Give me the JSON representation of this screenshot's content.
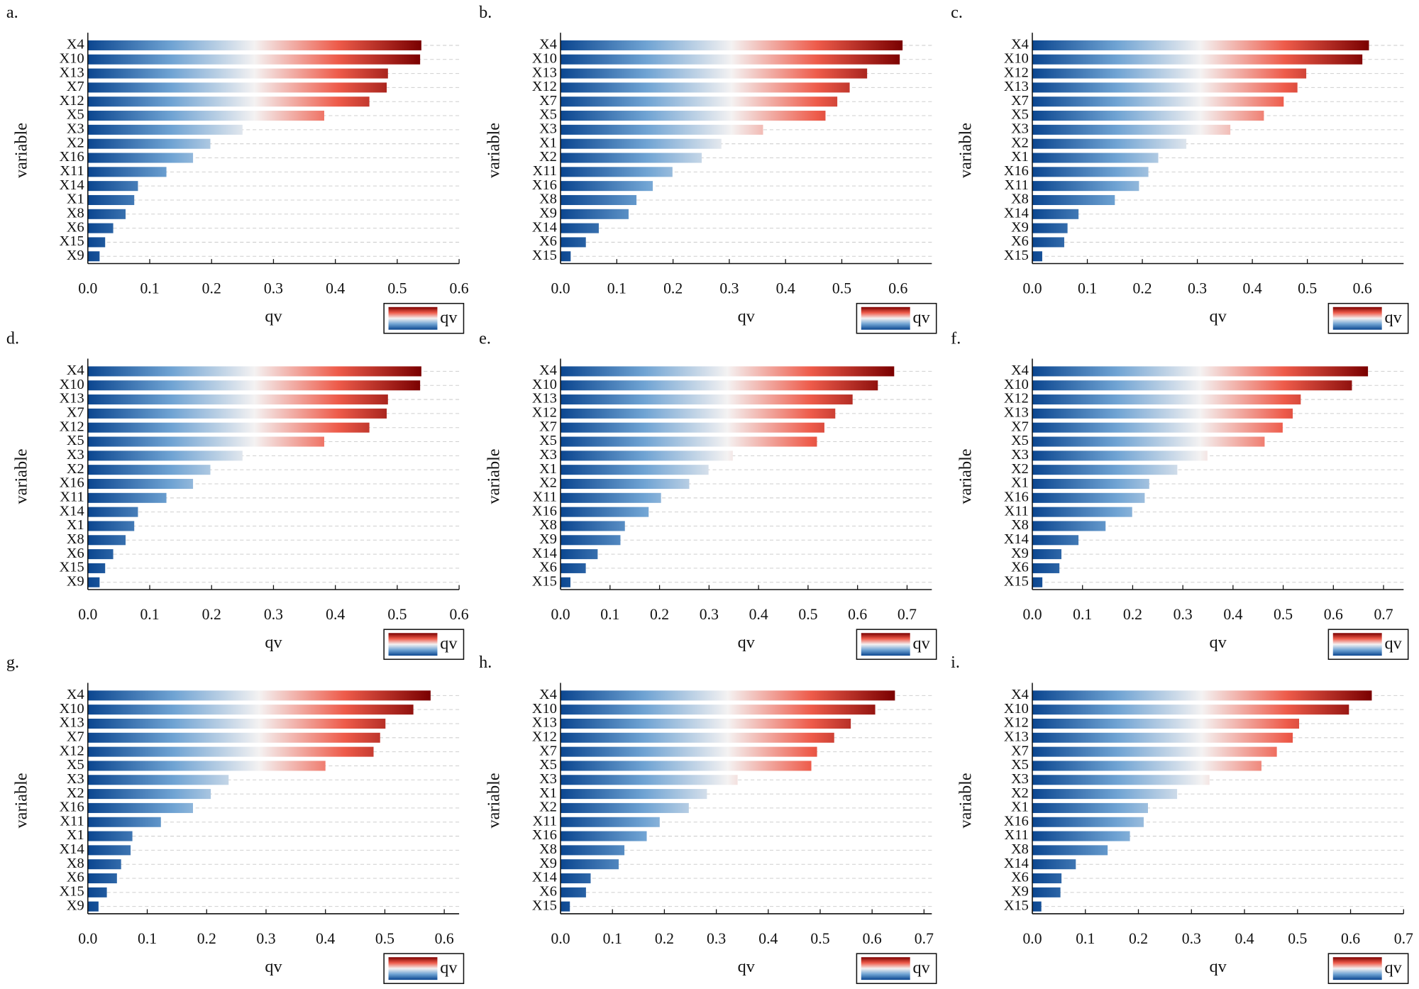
{
  "chart_data": [
    {
      "type": "bar",
      "title": "a.",
      "ylabel": "variable",
      "xlabel": "qv",
      "legend_label": "qv",
      "grid": true,
      "colormap": [
        "#0b4690",
        "#6fa3d3",
        "#f4f2f2",
        "#ee5b4a",
        "#7a0000"
      ],
      "categories": [
        "X4",
        "X10",
        "X13",
        "X7",
        "X12",
        "X5",
        "X3",
        "X2",
        "X16",
        "X11",
        "X14",
        "X1",
        "X8",
        "X6",
        "X15",
        "X9"
      ],
      "values": [
        0.539,
        0.537,
        0.485,
        0.483,
        0.455,
        0.382,
        0.25,
        0.198,
        0.17,
        0.127,
        0.081,
        0.075,
        0.061,
        0.041,
        0.028,
        0.019
      ],
      "xlim": [
        0,
        0.6
      ],
      "xticks": [
        {
          "value": 0,
          "label": "0.0"
        },
        0.1,
        0.2,
        0.3,
        0.4,
        0.5,
        0.6
      ]
    },
    {
      "type": "bar",
      "title": "b.",
      "ylabel": "variable",
      "xlabel": "qv",
      "legend_label": "qv",
      "grid": true,
      "colormap": [
        "#0b4690",
        "#6fa3d3",
        "#f4f2f2",
        "#ee5b4a",
        "#7a0000"
      ],
      "categories": [
        "X4",
        "X10",
        "X13",
        "X12",
        "X7",
        "X5",
        "X3",
        "X1",
        "X2",
        "X11",
        "X16",
        "X8",
        "X9",
        "X14",
        "X6",
        "X15"
      ],
      "values": [
        0.608,
        0.603,
        0.545,
        0.514,
        0.492,
        0.471,
        0.36,
        0.286,
        0.251,
        0.199,
        0.164,
        0.135,
        0.121,
        0.068,
        0.045,
        0.018
      ],
      "xlim": [
        0,
        0.66
      ],
      "xticks": [
        {
          "value": 0,
          "label": "0.0"
        },
        0.1,
        0.2,
        0.3,
        0.4,
        0.5,
        0.6
      ]
    },
    {
      "type": "bar",
      "title": "c.",
      "ylabel": "variable",
      "xlabel": "qv",
      "legend_label": "qv",
      "grid": true,
      "colormap": [
        "#0b4690",
        "#6fa3d3",
        "#f4f2f2",
        "#ee5b4a",
        "#7a0000"
      ],
      "categories": [
        "X4",
        "X10",
        "X12",
        "X13",
        "X7",
        "X5",
        "X3",
        "X2",
        "X1",
        "X16",
        "X11",
        "X8",
        "X14",
        "X9",
        "X6",
        "X15"
      ],
      "values": [
        0.612,
        0.6,
        0.498,
        0.482,
        0.457,
        0.421,
        0.36,
        0.28,
        0.229,
        0.211,
        0.194,
        0.15,
        0.084,
        0.064,
        0.058,
        0.018
      ],
      "xlim": [
        0,
        0.675
      ],
      "xticks": [
        {
          "value": 0,
          "label": "0.0"
        },
        0.1,
        0.2,
        0.3,
        0.4,
        0.5,
        0.6
      ]
    },
    {
      "type": "bar",
      "title": "d.",
      "ylabel": "variable",
      "xlabel": "qv",
      "legend_label": "qv",
      "grid": true,
      "colormap": [
        "#0b4690",
        "#6fa3d3",
        "#f4f2f2",
        "#ee5b4a",
        "#7a0000"
      ],
      "categories": [
        "X4",
        "X10",
        "X13",
        "X7",
        "X12",
        "X5",
        "X3",
        "X2",
        "X16",
        "X11",
        "X14",
        "X1",
        "X8",
        "X6",
        "X15",
        "X9"
      ],
      "values": [
        0.539,
        0.537,
        0.485,
        0.483,
        0.455,
        0.382,
        0.25,
        0.198,
        0.17,
        0.127,
        0.081,
        0.075,
        0.061,
        0.041,
        0.028,
        0.019
      ],
      "xlim": [
        0,
        0.6
      ],
      "xticks": [
        {
          "value": 0,
          "label": "0.0"
        },
        0.1,
        0.2,
        0.3,
        0.4,
        0.5,
        0.6
      ]
    },
    {
      "type": "bar",
      "title": "e.",
      "ylabel": "variable",
      "xlabel": "qv",
      "legend_label": "qv",
      "grid": true,
      "colormap": [
        "#0b4690",
        "#6fa3d3",
        "#f4f2f2",
        "#ee5b4a",
        "#7a0000"
      ],
      "categories": [
        "X4",
        "X10",
        "X13",
        "X12",
        "X7",
        "X5",
        "X3",
        "X1",
        "X2",
        "X11",
        "X16",
        "X8",
        "X9",
        "X14",
        "X6",
        "X15"
      ],
      "values": [
        0.674,
        0.641,
        0.59,
        0.555,
        0.533,
        0.518,
        0.348,
        0.299,
        0.26,
        0.203,
        0.178,
        0.13,
        0.121,
        0.075,
        0.051,
        0.02
      ],
      "xlim": [
        0,
        0.75
      ],
      "xticks": [
        {
          "value": 0,
          "label": "0.0"
        },
        0.1,
        0.2,
        0.3,
        0.4,
        0.5,
        0.6,
        0.7
      ]
    },
    {
      "type": "bar",
      "title": "f.",
      "ylabel": "variable",
      "xlabel": "qv",
      "legend_label": "qv",
      "grid": true,
      "colormap": [
        "#0b4690",
        "#6fa3d3",
        "#f4f2f2",
        "#ee5b4a",
        "#7a0000"
      ],
      "categories": [
        "X4",
        "X10",
        "X12",
        "X13",
        "X7",
        "X5",
        "X3",
        "X2",
        "X1",
        "X16",
        "X11",
        "X8",
        "X14",
        "X9",
        "X6",
        "X15"
      ],
      "values": [
        0.669,
        0.637,
        0.535,
        0.519,
        0.499,
        0.463,
        0.349,
        0.289,
        0.233,
        0.224,
        0.199,
        0.146,
        0.092,
        0.058,
        0.054,
        0.02
      ],
      "xlim": [
        0,
        0.74
      ],
      "xticks": [
        {
          "value": 0,
          "label": "0.0"
        },
        0.1,
        0.2,
        0.3,
        0.4,
        0.5,
        0.6,
        0.7
      ]
    },
    {
      "type": "bar",
      "title": "g.",
      "ylabel": "variable",
      "xlabel": "qv",
      "legend_label": "qv",
      "grid": true,
      "colormap": [
        "#0b4690",
        "#6fa3d3",
        "#f4f2f2",
        "#ee5b4a",
        "#7a0000"
      ],
      "categories": [
        "X4",
        "X10",
        "X13",
        "X7",
        "X12",
        "X5",
        "X3",
        "X2",
        "X16",
        "X11",
        "X1",
        "X14",
        "X8",
        "X6",
        "X15",
        "X9"
      ],
      "values": [
        0.577,
        0.548,
        0.501,
        0.492,
        0.481,
        0.4,
        0.237,
        0.207,
        0.177,
        0.123,
        0.075,
        0.072,
        0.056,
        0.049,
        0.032,
        0.018
      ],
      "xlim": [
        0,
        0.625
      ],
      "xticks": [
        {
          "value": 0,
          "label": "0.0"
        },
        0.1,
        0.2,
        0.3,
        0.4,
        0.5,
        0.6
      ]
    },
    {
      "type": "bar",
      "title": "h.",
      "ylabel": "variable",
      "xlabel": "qv",
      "legend_label": "qv",
      "grid": true,
      "colormap": [
        "#0b4690",
        "#6fa3d3",
        "#f4f2f2",
        "#ee5b4a",
        "#7a0000"
      ],
      "categories": [
        "X4",
        "X10",
        "X13",
        "X12",
        "X7",
        "X5",
        "X3",
        "X1",
        "X2",
        "X11",
        "X16",
        "X8",
        "X9",
        "X14",
        "X6",
        "X15"
      ],
      "values": [
        0.644,
        0.606,
        0.559,
        0.527,
        0.494,
        0.483,
        0.341,
        0.282,
        0.247,
        0.191,
        0.166,
        0.123,
        0.112,
        0.058,
        0.049,
        0.018
      ],
      "xlim": [
        0,
        0.715
      ],
      "xticks": [
        {
          "value": 0,
          "label": "0.0"
        },
        0.1,
        0.2,
        0.3,
        0.4,
        0.5,
        0.6,
        0.7
      ]
    },
    {
      "type": "bar",
      "title": "i.",
      "ylabel": "variable",
      "xlabel": "qv",
      "legend_label": "qv",
      "grid": true,
      "colormap": [
        "#0b4690",
        "#6fa3d3",
        "#f4f2f2",
        "#ee5b4a",
        "#7a0000"
      ],
      "categories": [
        "X4",
        "X10",
        "X12",
        "X13",
        "X7",
        "X5",
        "X3",
        "X2",
        "X1",
        "X16",
        "X11",
        "X8",
        "X14",
        "X6",
        "X9",
        "X15"
      ],
      "values": [
        0.64,
        0.597,
        0.503,
        0.491,
        0.461,
        0.432,
        0.334,
        0.273,
        0.218,
        0.21,
        0.184,
        0.142,
        0.082,
        0.055,
        0.053,
        0.017
      ],
      "xlim": [
        0,
        0.7
      ],
      "xticks": [
        {
          "value": 0,
          "label": "0.0"
        },
        0.1,
        0.2,
        0.3,
        0.4,
        0.5,
        0.6,
        0.7
      ]
    }
  ]
}
